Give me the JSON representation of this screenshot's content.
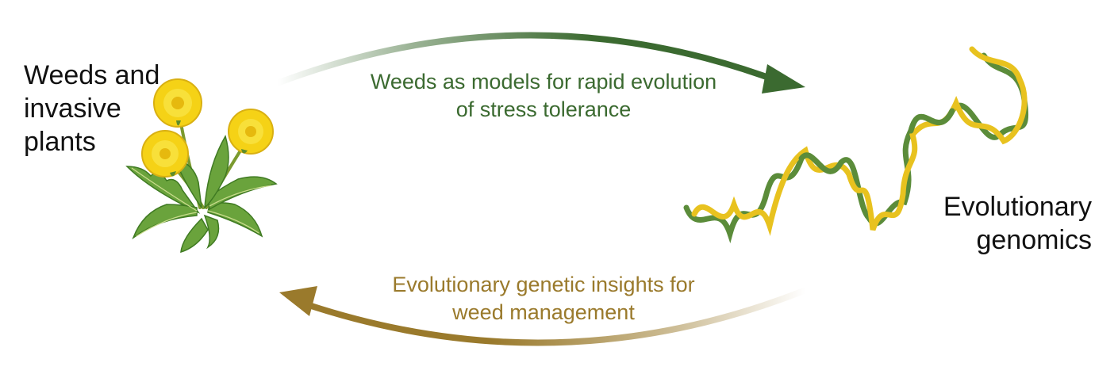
{
  "left_node": {
    "lines": [
      "Weeds and",
      "invasive",
      "plants"
    ],
    "icon": "dandelion-icon"
  },
  "right_node": {
    "lines": [
      "Evolutionary",
      "genomics"
    ],
    "icon": "dna-helix-icon"
  },
  "top_arrow": {
    "lines": [
      "Weeds as models for rapid evolution",
      "of stress tolerance"
    ],
    "color": "#3b6a30"
  },
  "bottom_arrow": {
    "lines": [
      "Evolutionary genetic insights for",
      "weed management"
    ],
    "color": "#9a7a2c"
  },
  "colors": {
    "green_strand": "#5b8c3a",
    "yellow_strand": "#e8c21f",
    "flower": "#f5d216",
    "leaf": "#6aa33c"
  }
}
